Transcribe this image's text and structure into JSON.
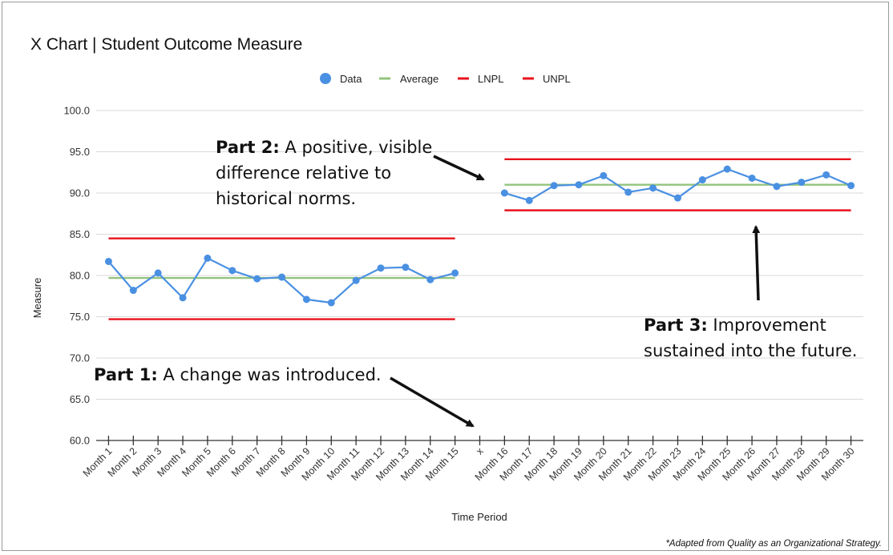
{
  "chart_data": {
    "type": "line",
    "title": "X Chart | Student Outcome Measure",
    "xlabel": "Time Period",
    "ylabel": "Measure",
    "ylim": [
      60,
      100
    ],
    "yticks": [
      "60.0",
      "65.0",
      "70.0",
      "75.0",
      "80.0",
      "85.0",
      "90.0",
      "95.0",
      "100.0"
    ],
    "grid": true,
    "legend_position": "top-center",
    "categories": [
      "Month 1",
      "Month 2",
      "Month 3",
      "Month 4",
      "Month 5",
      "Month 6",
      "Month 7",
      "Month 8",
      "Month 9",
      "Month 10",
      "Month 11",
      "Month 12",
      "Month 13",
      "Month 14",
      "Month 15",
      "x",
      "Month 16",
      "Month 17",
      "Month 18",
      "Month 19",
      "Month 20",
      "Month 21",
      "Month 22",
      "Month 23",
      "Month 24",
      "Month 25",
      "Month 26",
      "Month 27",
      "Month 28",
      "Month 29",
      "Month 30"
    ],
    "legend": [
      {
        "name": "Data",
        "color": "#4a90e2",
        "symbol": "dot"
      },
      {
        "name": "Average",
        "color": "#93c47d",
        "symbol": "line"
      },
      {
        "name": "LNPL",
        "color": "#e8121c",
        "symbol": "line"
      },
      {
        "name": "UNPL",
        "color": "#e8121c",
        "symbol": "line"
      }
    ],
    "series": [
      {
        "name": "Data",
        "color": "#4a90e2",
        "values": [
          81.7,
          78.2,
          80.3,
          77.3,
          82.1,
          80.6,
          79.6,
          79.8,
          77.1,
          76.7,
          79.4,
          80.9,
          81.0,
          79.5,
          80.3,
          null,
          90.0,
          89.1,
          90.9,
          91.0,
          92.1,
          90.1,
          90.6,
          89.4,
          91.6,
          92.9,
          91.8,
          90.8,
          91.3,
          92.2,
          90.9
        ]
      },
      {
        "name": "Average",
        "color": "#93c47d",
        "values": [
          79.7,
          79.7,
          79.7,
          79.7,
          79.7,
          79.7,
          79.7,
          79.7,
          79.7,
          79.7,
          79.7,
          79.7,
          79.7,
          79.7,
          79.7,
          null,
          91.0,
          91.0,
          91.0,
          91.0,
          91.0,
          91.0,
          91.0,
          91.0,
          91.0,
          91.0,
          91.0,
          91.0,
          91.0,
          91.0,
          91.0
        ]
      },
      {
        "name": "LNPL",
        "color": "#e8121c",
        "values": [
          74.7,
          74.7,
          74.7,
          74.7,
          74.7,
          74.7,
          74.7,
          74.7,
          74.7,
          74.7,
          74.7,
          74.7,
          74.7,
          74.7,
          74.7,
          null,
          87.9,
          87.9,
          87.9,
          87.9,
          87.9,
          87.9,
          87.9,
          87.9,
          87.9,
          87.9,
          87.9,
          87.9,
          87.9,
          87.9,
          87.9
        ]
      },
      {
        "name": "UNPL",
        "color": "#e8121c",
        "values": [
          84.5,
          84.5,
          84.5,
          84.5,
          84.5,
          84.5,
          84.5,
          84.5,
          84.5,
          84.5,
          84.5,
          84.5,
          84.5,
          84.5,
          84.5,
          null,
          94.1,
          94.1,
          94.1,
          94.1,
          94.1,
          94.1,
          94.1,
          94.1,
          94.1,
          94.1,
          94.1,
          94.1,
          94.1,
          94.1,
          94.1
        ]
      }
    ],
    "annotations": {
      "part1": {
        "head": "Part 1:",
        "body": "A change was introduced."
      },
      "part2": {
        "head": "Part 2:",
        "body": "A positive, visible difference relative to historical norms.",
        "line1": "A positive, visible",
        "line2": "difference relative to",
        "line3": "historical norms."
      },
      "part3": {
        "head": "Part 3:",
        "body": "Improvement sustained into the future.",
        "line1": "Improvement",
        "line2": "sustained into the future."
      }
    },
    "footnote": "*Adapted from Quality as an Organizational Strategy."
  }
}
